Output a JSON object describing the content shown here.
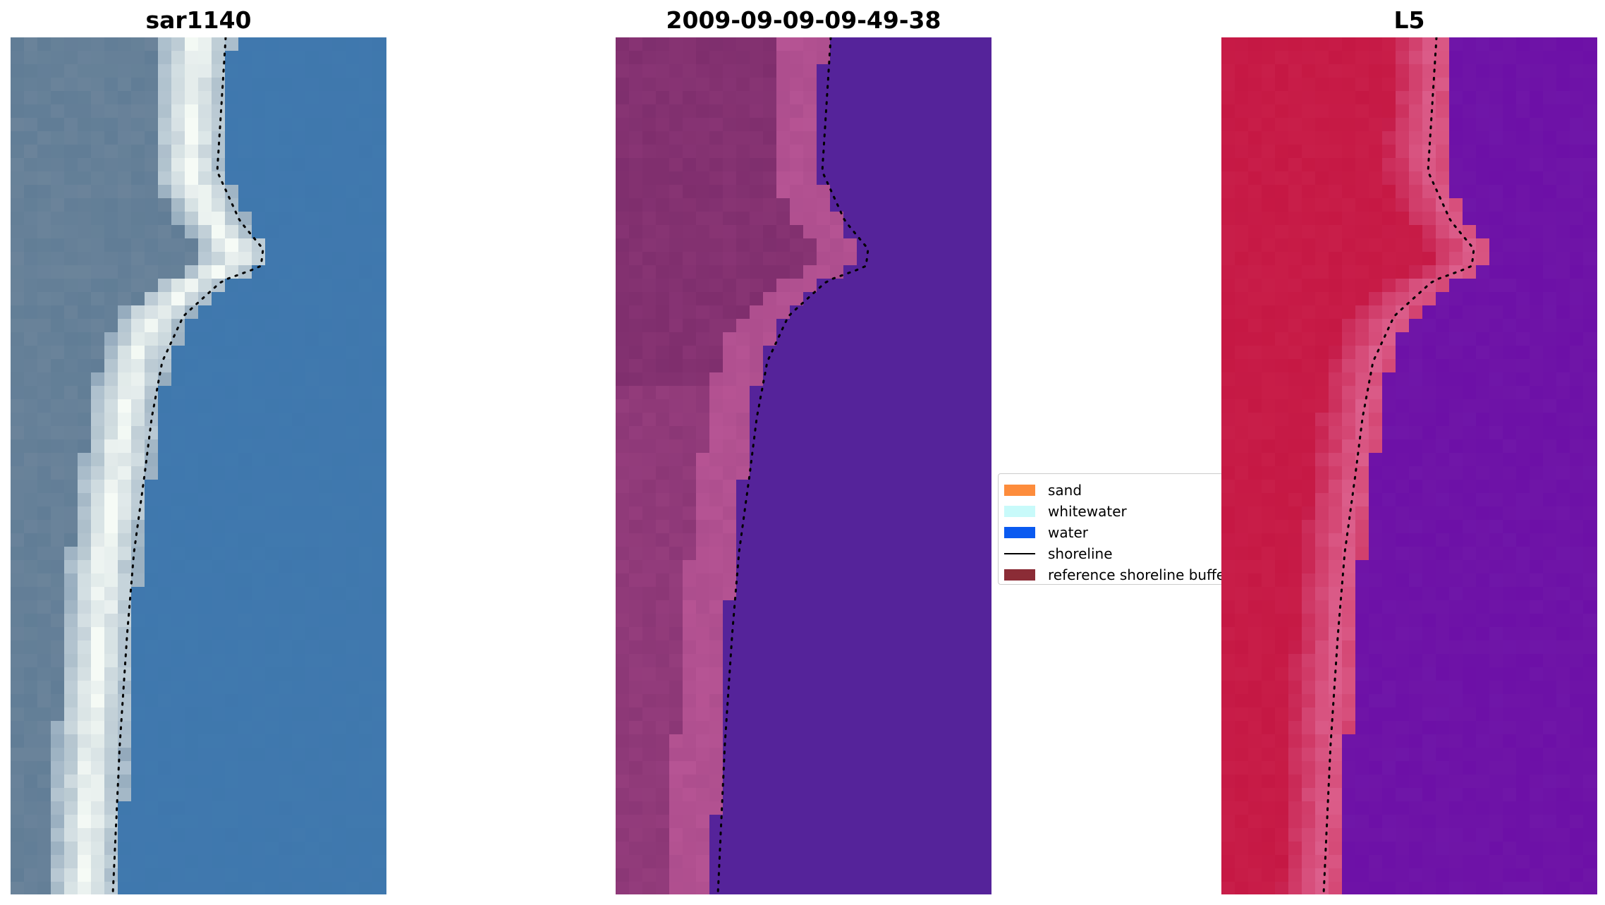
{
  "panels": [
    {
      "id": "rgb",
      "title": "sar1140",
      "colormap": "rgb"
    },
    {
      "id": "class",
      "title": "2009-09-09-09-49-38",
      "colormap": "class"
    },
    {
      "id": "l5",
      "title": "L5",
      "colormap": "index"
    }
  ],
  "legend": {
    "items": [
      {
        "label": "sand",
        "kind": "patch",
        "color": "#fd8c3c"
      },
      {
        "label": "whitewater",
        "kind": "patch",
        "color": "#c8fafa"
      },
      {
        "label": "water",
        "kind": "patch",
        "color": "#0a5af0"
      },
      {
        "label": "shoreline",
        "kind": "line",
        "color": "#000000"
      },
      {
        "label": "reference shoreline buffer",
        "kind": "patch",
        "color": "#8b2c36"
      }
    ]
  },
  "colors": {
    "rgb_land": "#5c7a94",
    "rgb_water": "#3d76ad",
    "rgb_whitewater": "#f6fbf6",
    "class_land_overlay": "#7a2b6a",
    "class_buffer_overlay": "#b85595",
    "class_water": "#55239a",
    "l5_land": "#c2113e",
    "l5_water": "#6a0aa6",
    "shoreline": "#000000"
  }
}
